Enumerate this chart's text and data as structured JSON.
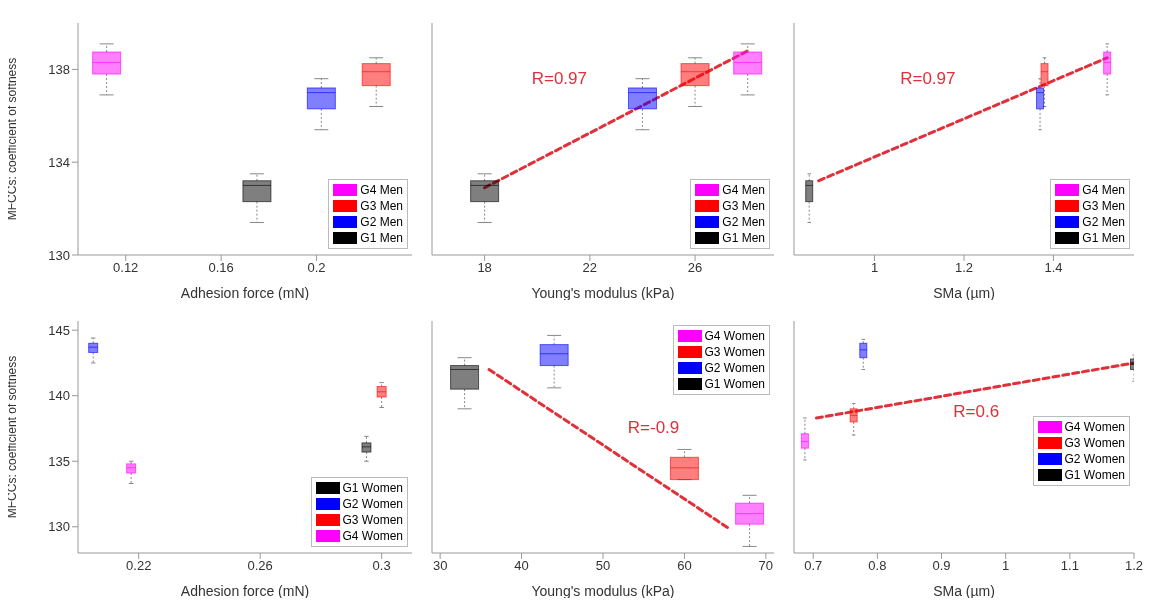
{
  "chart_data": [
    {
      "type": "box",
      "ylabel": "MFCCs: coefficient of softness",
      "xlabel": "Adhesion force (mN)",
      "xlim": [
        0.1,
        0.24
      ],
      "xticks": [
        0.12,
        0.16,
        0.2
      ],
      "ylim": [
        130,
        140
      ],
      "yticks": [
        130,
        134,
        138
      ],
      "legend": "bottom right",
      "series": [
        {
          "name": "G4 Men",
          "color": "#ff00ff",
          "x": [
            0.112
          ],
          "boxes": [
            {
              "low": 136.9,
              "q1": 137.8,
              "median": 138.3,
              "q3": 138.75,
              "high": 139.1
            }
          ]
        },
        {
          "name": "G3 Men",
          "color": "#ff0000",
          "x": [
            0.225
          ],
          "boxes": [
            {
              "low": 136.4,
              "q1": 137.3,
              "median": 137.9,
              "q3": 138.25,
              "high": 138.5
            }
          ]
        },
        {
          "name": "G2 Men",
          "color": "#0000ff",
          "x": [
            0.202
          ],
          "boxes": [
            {
              "low": 135.4,
              "q1": 136.3,
              "median": 137,
              "q3": 137.2,
              "high": 137.6
            }
          ]
        },
        {
          "name": "G1 Men",
          "color": "#000000",
          "x": [
            0.175
          ],
          "boxes": [
            {
              "low": 131.4,
              "q1": 132.3,
              "median": 133,
              "q3": 133.2,
              "high": 133.5
            }
          ]
        }
      ]
    },
    {
      "type": "box",
      "xlabel": "Young's modulus (kPa)",
      "xlim": [
        16,
        29
      ],
      "xticks": [
        18,
        22,
        26
      ],
      "ylim": [
        130,
        140
      ],
      "yticks": [
        130,
        134,
        138
      ],
      "tick_labels": "x",
      "legend": "bottom right",
      "annotations": [
        "R=0.97"
      ],
      "series": [
        {
          "name": "G4 Men",
          "color": "#ff00ff",
          "x": [
            28
          ],
          "boxes": [
            {
              "low": 136.9,
              "q1": 137.8,
              "median": 138.3,
              "q3": 138.75,
              "high": 139.1
            }
          ]
        },
        {
          "name": "G3 Men",
          "color": "#ff0000",
          "x": [
            26
          ],
          "boxes": [
            {
              "low": 136.4,
              "q1": 137.3,
              "median": 137.9,
              "q3": 138.25,
              "high": 138.5
            }
          ]
        },
        {
          "name": "G2 Men",
          "color": "#0000ff",
          "x": [
            24
          ],
          "boxes": [
            {
              "low": 135.4,
              "q1": 136.3,
              "median": 137,
              "q3": 137.2,
              "high": 137.6
            }
          ]
        },
        {
          "name": "G1 Men",
          "color": "#000000",
          "x": [
            18
          ],
          "boxes": [
            {
              "low": 131.4,
              "q1": 132.3,
              "median": 133,
              "q3": 133.2,
              "high": 133.5
            }
          ]
        },
        {
          "type": "line",
          "color": "#e0303a",
          "line_style": "dashed",
          "x": [
            18,
            28
          ],
          "values": [
            132.9,
            138.8
          ]
        }
      ]
    },
    {
      "type": "box",
      "xlabel": "SMa (µm)",
      "xlim": [
        0.82,
        1.58
      ],
      "xticks": [
        1,
        1.2,
        1.4
      ],
      "ylim": [
        130,
        140
      ],
      "yticks": [
        130,
        134,
        138
      ],
      "tick_labels": "x",
      "legend": "bottom right",
      "annotations": [
        "R=0.97"
      ],
      "series": [
        {
          "name": "G4 Men",
          "color": "#ff00ff",
          "x": [
            1.52
          ],
          "boxes": [
            {
              "low": 136.9,
              "q1": 137.8,
              "median": 138.3,
              "q3": 138.75,
              "high": 139.1
            }
          ]
        },
        {
          "name": "G3 Men",
          "color": "#ff0000",
          "x": [
            1.38
          ],
          "boxes": [
            {
              "low": 136.4,
              "q1": 137.3,
              "median": 137.9,
              "q3": 138.25,
              "high": 138.5
            }
          ]
        },
        {
          "name": "G2 Men",
          "color": "#0000ff",
          "x": [
            1.37
          ],
          "boxes": [
            {
              "low": 135.4,
              "q1": 136.3,
              "median": 137,
              "q3": 137.2,
              "high": 137.6
            }
          ]
        },
        {
          "name": "G1 Men",
          "color": "#000000",
          "x": [
            0.854
          ],
          "boxes": [
            {
              "low": 131.4,
              "q1": 132.3,
              "median": 133,
              "q3": 133.2,
              "high": 133.5
            }
          ]
        },
        {
          "type": "line",
          "color": "#e0303a",
          "line_style": "dashed",
          "x": [
            0.875,
            1.52
          ],
          "values": [
            133.2,
            138.5
          ]
        }
      ]
    },
    {
      "type": "box",
      "ylabel": "MFCCs: coefficient of softness",
      "xlabel": "Adhesion force (mN)",
      "xlim": [
        0.2,
        0.31
      ],
      "xticks": [
        0.22,
        0.26,
        0.3
      ],
      "ylim": [
        128,
        145.7
      ],
      "yticks": [
        130,
        135,
        140,
        145
      ],
      "legend": "bottom right",
      "series": [
        {
          "name": "G1 Women",
          "color": "#000000",
          "x": [
            0.295
          ],
          "boxes": [
            {
              "low": 135,
              "q1": 135.7,
              "median": 136.1,
              "q3": 136.4,
              "high": 136.9
            }
          ]
        },
        {
          "name": "G2 Women",
          "color": "#0000ff",
          "x": [
            0.205
          ],
          "boxes": [
            {
              "low": 142.5,
              "q1": 143.3,
              "median": 143.7,
              "q3": 144,
              "high": 144.4
            }
          ]
        },
        {
          "name": "G3 Women",
          "color": "#ff0000",
          "x": [
            0.3
          ],
          "boxes": [
            {
              "low": 139.1,
              "q1": 139.9,
              "median": 140.3,
              "q3": 140.7,
              "high": 141
            }
          ]
        },
        {
          "name": "G4 Women",
          "color": "#ff00ff",
          "x": [
            0.2175
          ],
          "boxes": [
            {
              "low": 133.3,
              "q1": 134.1,
              "median": 134.5,
              "q3": 134.8,
              "high": 135
            }
          ]
        }
      ]
    },
    {
      "type": "box",
      "xlabel": "Young's modulus (kPa)",
      "xlim": [
        29,
        71
      ],
      "xticks": [
        30,
        40,
        50,
        60,
        70
      ],
      "ylim": [
        128,
        145.7
      ],
      "yticks": [
        130,
        135,
        140,
        145
      ],
      "tick_labels": "x",
      "legend": "top right",
      "annotations": [
        "R=-0.9"
      ],
      "series": [
        {
          "name": "G4 Women",
          "color": "#ff00ff",
          "x": [
            68
          ],
          "boxes": [
            {
              "low": 128.5,
              "q1": 130.2,
              "median": 131,
              "q3": 131.8,
              "high": 132.4
            }
          ]
        },
        {
          "name": "G3 Women",
          "color": "#ff0000",
          "x": [
            60
          ],
          "boxes": [
            {
              "low": 133.6,
              "q1": 133.6,
              "median": 134.5,
              "q3": 135.3,
              "high": 135.9
            }
          ]
        },
        {
          "name": "G2 Women",
          "color": "#0000ff",
          "x": [
            44
          ],
          "boxes": [
            {
              "low": 140.6,
              "q1": 142.3,
              "median": 143.2,
              "q3": 143.9,
              "high": 144.6
            }
          ]
        },
        {
          "name": "G1 Women",
          "color": "#000000",
          "x": [
            33
          ],
          "boxes": [
            {
              "low": 139,
              "q1": 140.5,
              "median": 142,
              "q3": 142.3,
              "high": 142.9
            }
          ]
        },
        {
          "type": "line",
          "color": "#e0303a",
          "line_style": "dashed",
          "x": [
            36,
            65.4
          ],
          "values": [
            142,
            129.9
          ]
        }
      ]
    },
    {
      "type": "box",
      "xlabel": "SMa (µm)",
      "xlim": [
        0.67,
        1.2
      ],
      "xticks": [
        0.7,
        0.8,
        0.9,
        1,
        1.1,
        1.2
      ],
      "ylim": [
        128,
        145.7
      ],
      "yticks": [
        130,
        135,
        140,
        145
      ],
      "tick_labels": "x",
      "legend": "right",
      "annotations": [
        "R=0.6"
      ],
      "series": [
        {
          "name": "G4 Women",
          "color": "#ff00ff",
          "x": [
            0.687
          ],
          "boxes": [
            {
              "low": 135.1,
              "q1": 136,
              "median": 136.5,
              "q3": 137.1,
              "high": 138.3
            }
          ]
        },
        {
          "name": "G3 Women",
          "color": "#ff0000",
          "x": [
            0.763
          ],
          "boxes": [
            {
              "low": 137,
              "q1": 138,
              "median": 138.5,
              "q3": 139,
              "high": 139.4
            }
          ]
        },
        {
          "name": "G2 Women",
          "color": "#0000ff",
          "x": [
            0.778
          ],
          "boxes": [
            {
              "low": 142,
              "q1": 142.9,
              "median": 143.5,
              "q3": 144,
              "high": 144.3
            }
          ]
        },
        {
          "name": "G1 Women",
          "color": "#000000",
          "x": [
            1.2
          ],
          "boxes": [
            {
              "low": 141.1,
              "q1": 142,
              "median": 142.4,
              "q3": 142.8,
              "high": 143.1
            }
          ]
        },
        {
          "type": "line",
          "color": "#e0303a",
          "line_style": "dashed",
          "x": [
            0.705,
            1.2
          ],
          "values": [
            138.3,
            142.5
          ]
        }
      ]
    }
  ]
}
